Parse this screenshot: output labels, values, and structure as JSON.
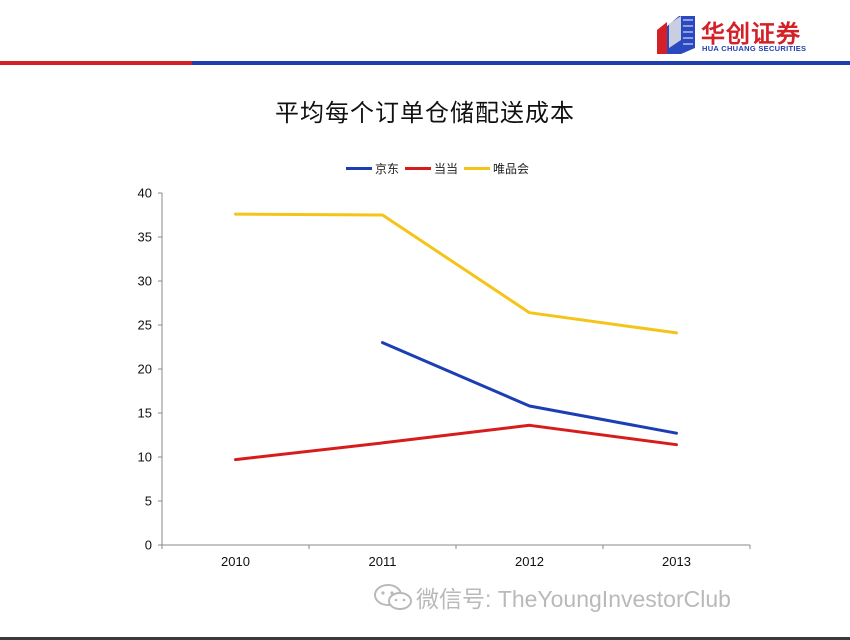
{
  "header": {
    "logo_cn": "华创证券",
    "logo_en": "HUA CHUANG SECURITIES",
    "accent_red": "#d42027",
    "accent_blue": "#1f3fb0"
  },
  "title": "平均每个订单仓储配送成本",
  "chart_data": {
    "type": "line",
    "title": "平均每个订单仓储配送成本",
    "x": [
      "2010",
      "2011",
      "2012",
      "2013"
    ],
    "ylim": [
      0,
      40
    ],
    "yticks": [
      0,
      5,
      10,
      15,
      20,
      25,
      30,
      35,
      40
    ],
    "grid": false,
    "legend_position": "top-center",
    "series": [
      {
        "name": "京东",
        "color": "#1c3eb4",
        "values": [
          null,
          23.0,
          15.8,
          12.7
        ]
      },
      {
        "name": "当当",
        "color": "#d81c1c",
        "values": [
          9.7,
          11.6,
          13.6,
          11.4
        ]
      },
      {
        "name": "唯品会",
        "color": "#f4c518",
        "values": [
          37.6,
          37.5,
          26.4,
          24.1
        ]
      }
    ]
  },
  "watermark": {
    "icon": "wechat-icon",
    "text": "微信号: TheYoungInvestorClub"
  }
}
